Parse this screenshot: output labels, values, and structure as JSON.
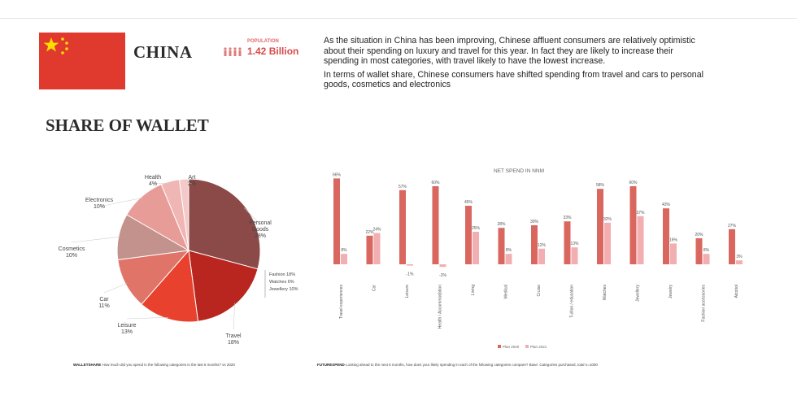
{
  "header": {
    "country": "CHINA",
    "population_label": "POPULATION",
    "population_value": "1.42 Billion",
    "paragraph1": "As the situation in China has been improving, Chinese affluent consumers are relatively optimistic about their spending on luxury and travel for this year. In fact they are likely to increase their spending in most categories, with travel likely to have the lowest increase.",
    "paragraph2": "In terms of wallet share, Chinese consumers have shifted spending from travel and cars to personal goods, cosmetics and electronics"
  },
  "colors": {
    "flag": "#e03a2e",
    "flag_star": "#ffde00",
    "bar_dark": "#d9675f",
    "bar_light": "#f2aeb0"
  },
  "icons": [
    "china-flag-icon",
    "people-icon"
  ],
  "share_title": "SHARE OF WALLET",
  "chart_data": [
    {
      "type": "pie",
      "title": "SHARE OF WALLET",
      "slices": [
        {
          "label": "Personal Goods",
          "value": 28,
          "text": "28%",
          "color": "#8b4a48"
        },
        {
          "label": "Travel",
          "value": 18,
          "text": "18%",
          "color": "#b8261f"
        },
        {
          "label": "Leisure",
          "value": 13,
          "text": "13%",
          "color": "#e8412e"
        },
        {
          "label": "Car",
          "value": 11,
          "text": "11%",
          "color": "#e07468"
        },
        {
          "label": "Cosmetics",
          "value": 10,
          "text": "10%",
          "color": "#c4928c"
        },
        {
          "label": "Electronics",
          "value": 10,
          "text": "10%",
          "color": "#e89c98"
        },
        {
          "label": "Health",
          "value": 4,
          "text": "4%",
          "color": "#efb6b4"
        },
        {
          "label": "Art",
          "value": 2,
          "text": "2%",
          "color": "#f4cac8"
        }
      ],
      "breakdown": [
        {
          "label": "Fashion",
          "text": "18%"
        },
        {
          "label": "Watches",
          "text": "6%"
        },
        {
          "label": "Jewellery",
          "text": "10%"
        }
      ]
    },
    {
      "type": "bar",
      "title": "NET SPEND IN NNM",
      "ylim": [
        -10,
        70
      ],
      "categories": [
        "Travel experiences",
        "Car",
        "Leisure",
        "Health / Accommodation",
        "Living",
        "Medical",
        "Cruise",
        "Tuition / education",
        "Watches",
        "Jewellery",
        "Jewelry",
        "Fashion accessories",
        "Alcohol"
      ],
      "series": [
        {
          "name": "Plan 2020",
          "values": [
            66,
            22,
            57,
            60,
            45,
            28,
            30,
            33,
            58,
            60,
            43,
            20,
            27
          ]
        },
        {
          "name": "Plan 2021",
          "values": [
            8,
            24,
            -1,
            -2,
            25,
            8,
            12,
            13,
            32,
            37,
            16,
            8,
            3
          ]
        }
      ],
      "labels_dark": [
        "66%",
        "22%",
        "57%",
        "60%",
        "45%",
        "28%",
        "30%",
        "33%",
        "58%",
        "60%",
        "43%",
        "20%",
        "27%"
      ],
      "labels_light": [
        "8%",
        "24%",
        "-1%",
        "-2%",
        "25%",
        "8%",
        "12%",
        "13%",
        "32%",
        "37%",
        "16%",
        "8%",
        "3%"
      ],
      "legend": [
        "Plan 2020",
        "Plan 2021"
      ]
    }
  ],
  "footer": {
    "left_bold": "WALLETSHARE",
    "left_text": "How much did you spend in the following categories in the last 6 months? vs 2020",
    "right_bold": "FUTURESPEND",
    "right_text": "Looking ahead to the next 6 months, how does your likely spending in each of the following categories compare? Base: Categories purchased, total n=1000"
  }
}
